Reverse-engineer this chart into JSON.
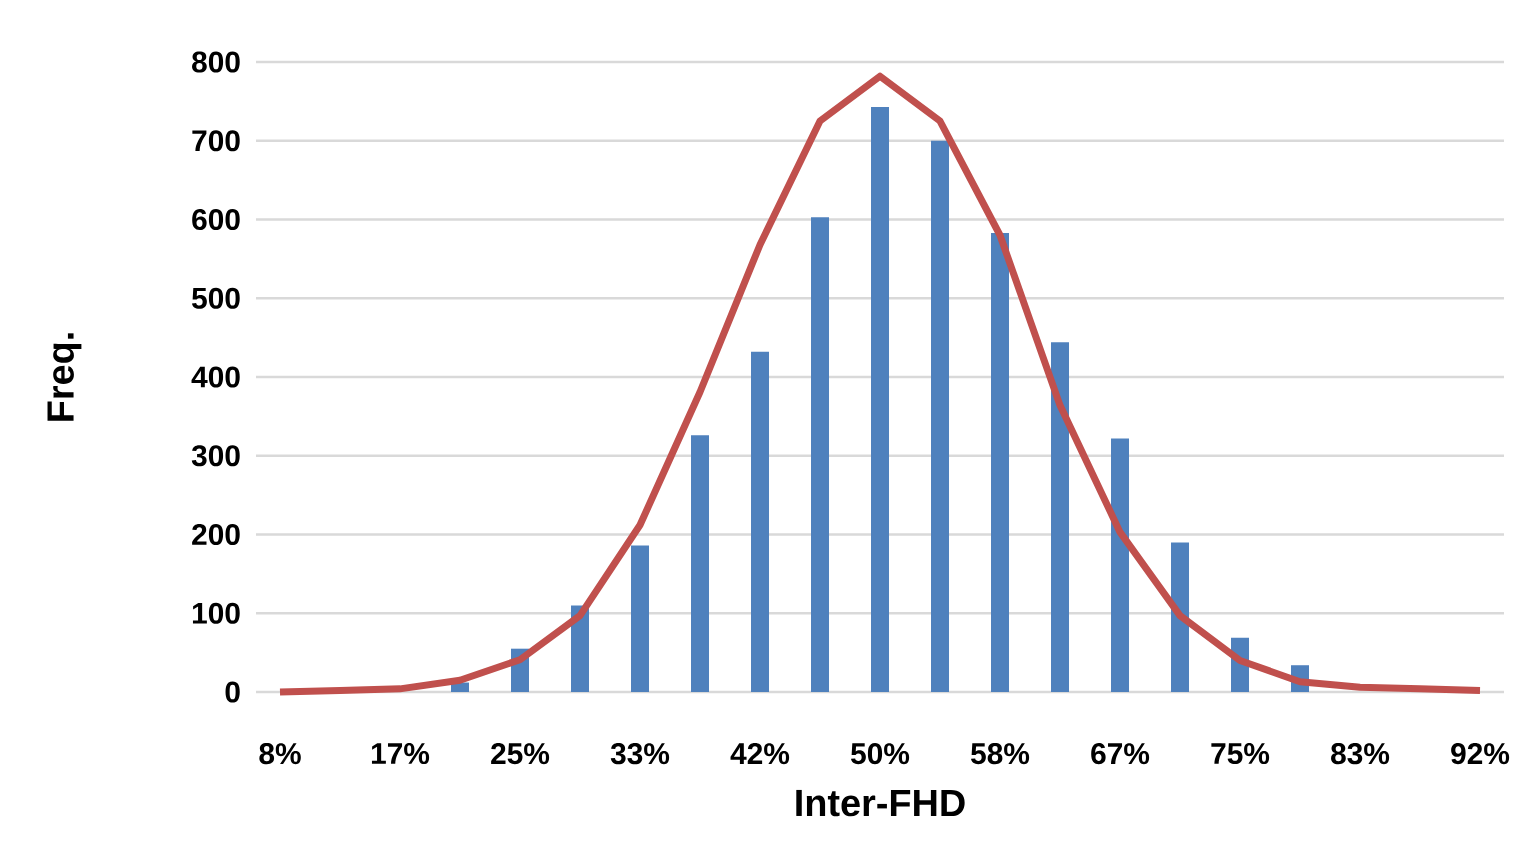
{
  "chart_data": {
    "type": "bar",
    "xlabel": "Inter-FHD",
    "ylabel": "Freq.",
    "categories": [
      "8%",
      null,
      "17%",
      null,
      "25%",
      null,
      "33%",
      null,
      "42%",
      null,
      "50%",
      null,
      "58%",
      null,
      "67%",
      null,
      "75%",
      null,
      "83%",
      null,
      "92%"
    ],
    "ylim": [
      0,
      800
    ],
    "yticks": [
      0,
      100,
      200,
      300,
      400,
      500,
      600,
      700,
      800
    ],
    "grid": "y",
    "series": [
      {
        "color": "#4f81bd",
        "values": [
          null,
          null,
          null,
          12,
          55,
          110,
          186,
          326,
          432,
          603,
          743,
          700,
          583,
          444,
          322,
          190,
          69,
          34,
          null,
          null,
          null
        ]
      },
      {
        "type": "line",
        "color": "#c0504d",
        "values": [
          0,
          2,
          4,
          15,
          41,
          97,
          212,
          381,
          568,
          725,
          782,
          725,
          580,
          364,
          203,
          97,
          40,
          13,
          6,
          4,
          2
        ]
      }
    ]
  }
}
